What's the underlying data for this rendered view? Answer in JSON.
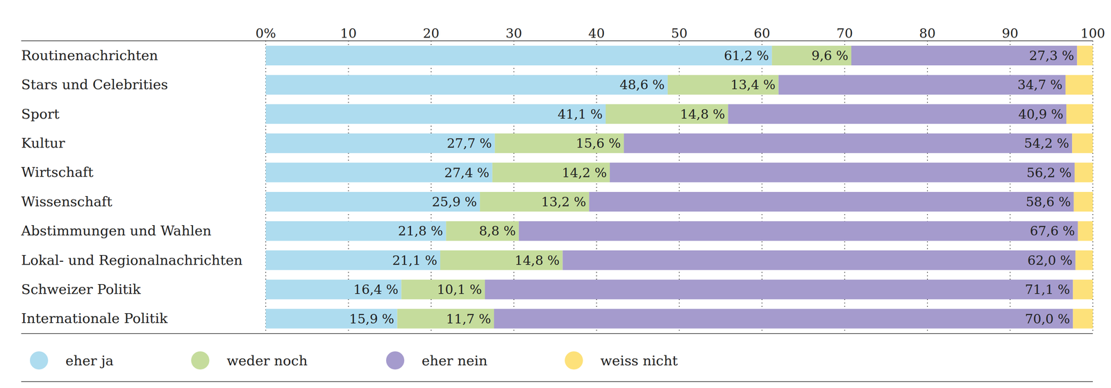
{
  "chart_data": {
    "type": "bar",
    "orientation": "horizontal",
    "stacked": true,
    "grid": true,
    "legend": "bottom left",
    "categories": [
      "Routinenachrichten",
      "Stars und Celebrities",
      "Sport",
      "Kultur",
      "Wirtschaft",
      "Wissenschaft",
      "Abstimmungen und Wahlen",
      "Lokal- und Regionalnachrichten",
      "Schweizer Politik",
      "Internationale Politik"
    ],
    "xlim": [
      0,
      100
    ],
    "xticks": [
      {
        "value": 0,
        "label": "0%"
      },
      10,
      20,
      30,
      40,
      50,
      60,
      70,
      80,
      90,
      100
    ],
    "series": [
      {
        "name": "eher ja",
        "color": "#aedcef",
        "data_labels": true,
        "values": [
          61.2,
          48.6,
          41.1,
          27.7,
          27.4,
          25.9,
          21.8,
          21.1,
          16.4,
          15.9
        ],
        "value_labels": [
          "61,2 %",
          "48,6 %",
          "41,1 %",
          "27,7 %",
          "27,4 %",
          "25,9 %",
          "21,8 %",
          "21,1 %",
          "16,4 %",
          "15,9 %"
        ]
      },
      {
        "name": "weder noch",
        "color": "#c5dc9c",
        "data_labels": true,
        "values": [
          9.6,
          13.4,
          14.8,
          15.6,
          14.2,
          13.2,
          8.8,
          14.8,
          10.1,
          11.7
        ],
        "value_labels": [
          "9,6 %",
          "13,4 %",
          "14,8 %",
          "15,6 %",
          "14,2 %",
          "13,2 %",
          "8,8 %",
          "14,8 %",
          "10,1 %",
          "11,7 %"
        ]
      },
      {
        "name": "eher nein",
        "color": "#a59bcd",
        "data_labels": true,
        "values": [
          27.3,
          34.7,
          40.9,
          54.2,
          56.2,
          58.6,
          67.6,
          62.0,
          71.1,
          70.0
        ],
        "value_labels": [
          "27,3 %",
          "34,7 %",
          "40,9 %",
          "54,2 %",
          "56,2 %",
          "58,6 %",
          "67,6 %",
          "62,0 %",
          "71,1 %",
          "70,0 %"
        ]
      },
      {
        "name": "weiss nicht",
        "color": "#fde17a",
        "data_labels": false,
        "values": [
          1.9,
          3.3,
          3.2,
          2.5,
          2.2,
          2.3,
          1.8,
          2.1,
          2.4,
          2.4
        ]
      }
    ]
  }
}
